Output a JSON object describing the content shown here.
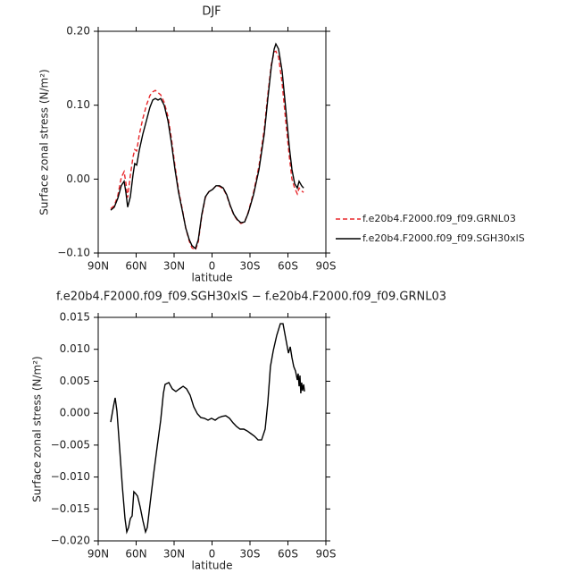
{
  "chart_data": [
    {
      "type": "line",
      "title": "DJF",
      "xlabel": "latitude",
      "ylabel": "Surface zonal stress (N/m²)",
      "xlim": [
        90,
        -90
      ],
      "xticks": [
        {
          "value": 90,
          "label": "90N"
        },
        {
          "value": 60,
          "label": "60N"
        },
        {
          "value": 30,
          "label": "30N"
        },
        0,
        {
          "value": -30,
          "label": "30S"
        },
        {
          "value": -60,
          "label": "60S"
        },
        {
          "value": -90,
          "label": "90S"
        }
      ],
      "ylim": [
        -0.1,
        0.2
      ],
      "yticks": [
        {
          "value": -0.1,
          "label": "−0.10"
        },
        {
          "value": 0,
          "label": "0.00"
        },
        {
          "value": 0.1,
          "label": "0.10"
        },
        {
          "value": 0.2,
          "label": "0.20"
        }
      ],
      "legend": "right",
      "x": [
        80.1,
        77.3,
        74.5,
        71.8,
        69.5,
        68.1,
        66.7,
        64.6,
        62.5,
        61.1,
        59.6,
        57.5,
        54.7,
        51.9,
        49.1,
        46.9,
        44.8,
        42.7,
        40.6,
        37.8,
        34.9,
        32.1,
        29.3,
        26.5,
        23.6,
        20.8,
        18.0,
        15.9,
        13.1,
        10.9,
        8.1,
        5.3,
        2.5,
        -0.4,
        -3.2,
        -6.0,
        -8.8,
        -11.6,
        -14.5,
        -17.3,
        -20.1,
        -22.9,
        -25.8,
        -28.6,
        -32.8,
        -37.1,
        -41.3,
        -44.1,
        -46.9,
        -49.1,
        -50.5,
        -52.6,
        -55.4,
        -58.2,
        -61.1,
        -63.2,
        -65.3,
        -67.4,
        -68.8,
        -70.9,
        -72.4
      ],
      "series": [
        {
          "name": "f.e20b4.F2000.f09_f09.GRNL03",
          "color": "#e8262a",
          "linestyle": "dashed",
          "values": [
            -0.04,
            -0.036,
            -0.022,
            0.002,
            0.01,
            -0.005,
            -0.025,
            0.005,
            0.03,
            0.04,
            0.038,
            0.06,
            0.082,
            0.1,
            0.113,
            0.118,
            0.12,
            0.117,
            0.114,
            0.104,
            0.085,
            0.055,
            0.018,
            -0.015,
            -0.04,
            -0.066,
            -0.084,
            -0.093,
            -0.096,
            -0.085,
            -0.05,
            -0.025,
            -0.017,
            -0.014,
            -0.009,
            -0.01,
            -0.013,
            -0.022,
            -0.037,
            -0.049,
            -0.056,
            -0.06,
            -0.058,
            -0.045,
            -0.018,
            0.018,
            0.068,
            0.115,
            0.155,
            0.172,
            0.173,
            0.165,
            0.13,
            0.08,
            0.03,
            0.0,
            -0.012,
            -0.02,
            -0.012,
            -0.016,
            -0.018
          ]
        },
        {
          "name": "f.e20b4.F2000.f09_f09.SGH30xlS",
          "color": "#000000",
          "linestyle": "solid",
          "values": [
            -0.042,
            -0.038,
            -0.026,
            -0.009,
            -0.003,
            -0.018,
            -0.038,
            -0.024,
            0.006,
            0.021,
            0.019,
            0.039,
            0.061,
            0.079,
            0.097,
            0.107,
            0.109,
            0.107,
            0.109,
            0.1,
            0.079,
            0.049,
            0.013,
            -0.018,
            -0.042,
            -0.066,
            -0.082,
            -0.09,
            -0.094,
            -0.082,
            -0.048,
            -0.024,
            -0.017,
            -0.014,
            -0.009,
            -0.009,
            -0.012,
            -0.021,
            -0.036,
            -0.048,
            -0.055,
            -0.059,
            -0.058,
            -0.046,
            -0.021,
            0.013,
            0.061,
            0.109,
            0.152,
            0.176,
            0.183,
            0.176,
            0.146,
            0.097,
            0.043,
            0.013,
            -0.006,
            -0.012,
            -0.003,
            -0.009,
            -0.012
          ]
        }
      ]
    },
    {
      "type": "line",
      "title": "f.e20b4.F2000.f09_f09.SGH30xlS − f.e20b4.F2000.f09_f09.GRNL03",
      "xlabel": "latitude",
      "ylabel": "Surface zonal stress (N/m²)",
      "xlim": [
        90,
        -90
      ],
      "xticks": [
        {
          "value": 90,
          "label": "90N"
        },
        {
          "value": 60,
          "label": "60N"
        },
        {
          "value": 30,
          "label": "30N"
        },
        0,
        {
          "value": -30,
          "label": "30S"
        },
        {
          "value": -60,
          "label": "60S"
        },
        {
          "value": -90,
          "label": "90S"
        }
      ],
      "ylim": [
        -0.02,
        0.015
      ],
      "yticks": [
        {
          "value": -0.02,
          "label": "−0.020"
        },
        {
          "value": -0.015,
          "label": "−0.015"
        },
        {
          "value": -0.01,
          "label": "−0.010"
        },
        {
          "value": -0.005,
          "label": "−0.005"
        },
        {
          "value": 0,
          "label": "0.000"
        },
        0.005,
        {
          "value": 0.01,
          "label": "0.010"
        },
        0.015
      ],
      "x": [
        80.1,
        78.0,
        76.6,
        75.2,
        73.1,
        70.9,
        68.8,
        67.4,
        66.0,
        64.6,
        63.2,
        61.8,
        60.4,
        58.9,
        56.8,
        54.7,
        52.6,
        51.2,
        49.1,
        46.2,
        43.4,
        40.6,
        38.5,
        37.1,
        34.2,
        31.4,
        28.6,
        25.8,
        22.9,
        20.1,
        17.3,
        14.5,
        11.6,
        8.8,
        6.0,
        3.2,
        0.4,
        -2.5,
        -5.3,
        -8.1,
        -10.9,
        -13.8,
        -16.6,
        -19.4,
        -22.2,
        -25.1,
        -27.9,
        -30.7,
        -33.5,
        -36.4,
        -39.2,
        -42.0,
        -44.1,
        -46.2,
        -48.4,
        -51.2,
        -54.0,
        -56.1,
        -58.2,
        -60.4,
        -61.8,
        -63.2,
        -64.6,
        -66.0,
        -67.4,
        -68.1,
        -68.8,
        -69.5,
        -70.2,
        -70.9,
        -71.6,
        -72.4,
        -73.1
      ],
      "series": [
        {
          "color": "#000000",
          "linestyle": "solid",
          "values": [
            -0.0014,
            0.001,
            0.0024,
            0.0003,
            -0.0053,
            -0.0116,
            -0.0165,
            -0.0186,
            -0.0179,
            -0.0165,
            -0.0161,
            -0.0123,
            -0.0126,
            -0.013,
            -0.0147,
            -0.0168,
            -0.0186,
            -0.0179,
            -0.0144,
            -0.0095,
            -0.0053,
            -0.0011,
            0.0031,
            0.0045,
            0.0048,
            0.0038,
            0.0034,
            0.0038,
            0.0042,
            0.0038,
            0.0028,
            0.001,
            -0.0001,
            -0.0007,
            -0.0008,
            -0.0011,
            -0.0008,
            -0.0011,
            -0.0007,
            -0.0005,
            -0.0004,
            -0.0008,
            -0.0015,
            -0.0021,
            -0.0025,
            -0.0025,
            -0.0028,
            -0.0032,
            -0.0036,
            -0.0042,
            -0.0042,
            -0.0025,
            0.0017,
            0.0073,
            0.0098,
            0.0122,
            0.014,
            0.014,
            0.0118,
            0.0094,
            0.0104,
            0.0087,
            0.0073,
            0.0066,
            0.0052,
            0.0062,
            0.0042,
            0.0059,
            0.0031,
            0.0048,
            0.0035,
            0.0045,
            0.0034
          ]
        }
      ]
    }
  ]
}
